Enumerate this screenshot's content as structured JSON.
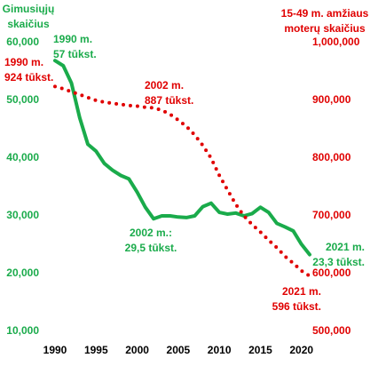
{
  "chart_data": {
    "type": "line",
    "ylabel": [
      "Gimusiųjų",
      "skaičius"
    ],
    "y2label": [
      "15-49 m. amžiaus",
      "moterų skaičius"
    ],
    "x": [
      1990,
      1991,
      1992,
      1993,
      1994,
      1995,
      1996,
      1997,
      1998,
      1999,
      2000,
      2001,
      2002,
      2003,
      2004,
      2005,
      2006,
      2007,
      2008,
      2009,
      2010,
      2011,
      2012,
      2013,
      2014,
      2015,
      2016,
      2017,
      2018,
      2019,
      2020,
      2021
    ],
    "xlim": [
      1990,
      2021
    ],
    "xticks": [
      1990,
      1995,
      2000,
      2005,
      2010,
      2015,
      2020
    ],
    "ylim": [
      10000,
      60000
    ],
    "yticks": [
      {
        "value": 10000,
        "label": "10,000"
      },
      {
        "value": 20000,
        "label": "20,000"
      },
      {
        "value": 30000,
        "label": "30,000"
      },
      {
        "value": 40000,
        "label": "40,000"
      },
      {
        "value": 50000,
        "label": "50,000"
      },
      {
        "value": 60000,
        "label": "60,000"
      }
    ],
    "y2lim": [
      500000,
      1000000
    ],
    "y2ticks": [
      {
        "value": 500000,
        "label": "500,000"
      },
      {
        "value": 600000,
        "label": "600,000"
      },
      {
        "value": 700000,
        "label": "700,000"
      },
      {
        "value": 800000,
        "label": "800,000"
      },
      {
        "value": 900000,
        "label": "900,000"
      },
      {
        "value": 1000000,
        "label": "1,000,000"
      }
    ],
    "grid": false,
    "series": [
      {
        "color": "#1aab4b",
        "style": "solid",
        "values": [
          56900,
          56000,
          53000,
          47000,
          42400,
          41200,
          39100,
          37900,
          37000,
          36400,
          34100,
          31500,
          29500,
          30000,
          30000,
          29800,
          29700,
          30000,
          31600,
          32200,
          30600,
          30300,
          30500,
          30000,
          30400,
          31500,
          30600,
          28700,
          28100,
          27400,
          25100,
          23300
        ]
      },
      {
        "color": "#e00000",
        "style": "dotted",
        "axis": "y2",
        "values": [
          924000,
          920000,
          915000,
          910000,
          905000,
          900000,
          897000,
          895000,
          893000,
          891000,
          890000,
          888000,
          887000,
          883000,
          876000,
          866000,
          855000,
          840000,
          822000,
          800000,
          770000,
          745000,
          720000,
          700000,
          685000,
          672000,
          658000,
          645000,
          630000,
          618000,
          605000,
          596000
        ]
      }
    ],
    "annotations": [
      {
        "lines": [
          "1990 m.",
          "57 tūkst."
        ],
        "color": "#1aab4b"
      },
      {
        "lines": [
          "1990 m.",
          "924 tūkst."
        ],
        "color": "#e00000"
      },
      {
        "lines": [
          "2002 m.",
          "887 tūkst."
        ],
        "color": "#e00000"
      },
      {
        "lines": [
          "2002 m.:",
          "29,5 tūkst."
        ],
        "color": "#1aab4b"
      },
      {
        "lines": [
          "2021 m.",
          "23,3 tūkst."
        ],
        "color": "#1aab4b"
      },
      {
        "lines": [
          "2021 m.",
          "596 tūkst."
        ],
        "color": "#e00000"
      }
    ]
  }
}
